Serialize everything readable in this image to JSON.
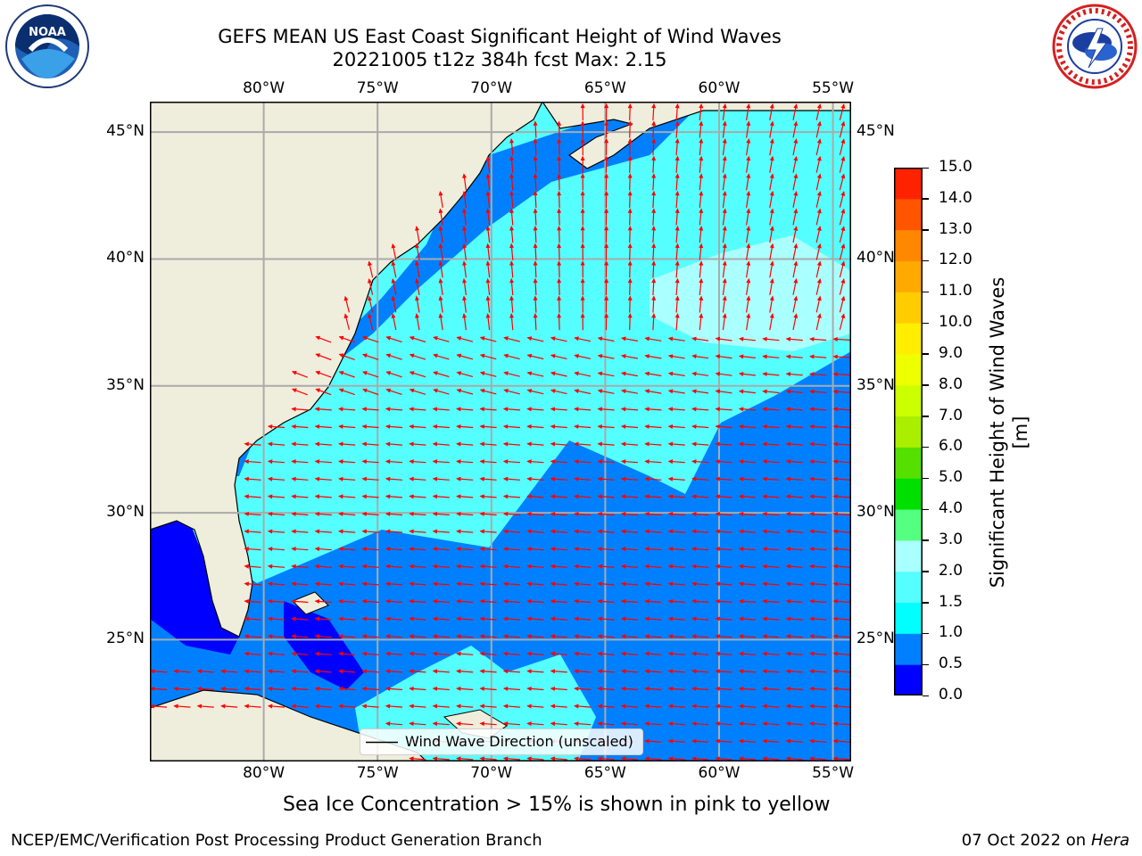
{
  "title": {
    "line1": "GEFS MEAN US East Coast Significant Height of Wind Waves",
    "line2": "20221005 t12z 384h fcst   Max: 2.15"
  },
  "logos": {
    "left": "noara-seal-logo",
    "right": "national-weather-service-logo"
  },
  "map": {
    "lon_ticks_top": [
      "80°W",
      "75°W",
      "70°W",
      "65°W",
      "60°W",
      "55°W"
    ],
    "lon_ticks_bottom": [
      "80°W",
      "75°W",
      "70°W",
      "65°W",
      "60°W",
      "55°W"
    ],
    "lat_ticks_left": [
      "45°N",
      "40°N",
      "35°N",
      "30°N",
      "25°N"
    ],
    "lat_ticks_right": [
      "45°N",
      "40°N",
      "35°N",
      "30°N",
      "25°N"
    ],
    "legend_label": "Wind Wave Direction (unscaled)",
    "extent": {
      "lon_min": -85,
      "lon_max": -54.2,
      "lat_min": 20.2,
      "lat_max": 46.2
    },
    "arrow_color": "#ff0000",
    "land_color": "#efeddc",
    "grid": true
  },
  "colorbar": {
    "label": "Significant Height of Wind Waves [m]",
    "ticks": [
      "0.0",
      "0.5",
      "1.0",
      "1.5",
      "2.0",
      "3.0",
      "4.0",
      "5.0",
      "6.0",
      "7.0",
      "8.0",
      "9.0",
      "10.0",
      "11.0",
      "12.0",
      "13.0",
      "14.0",
      "15.0"
    ],
    "colors": [
      "#0000ff",
      "#0080ff",
      "#00ffff",
      "#55ffff",
      "#aaffff",
      "#55ff80",
      "#00e000",
      "#55e000",
      "#aaee00",
      "#ccff00",
      "#eeff00",
      "#ffee00",
      "#ffcc00",
      "#ffaa00",
      "#ff8800",
      "#ff5500",
      "#ff2200"
    ]
  },
  "note": "Sea Ice Concentration > 15% is shown in pink to yellow",
  "footer": {
    "left": "NCEP/EMC/Verification Post Processing Product Generation Branch",
    "right_date": "07 Oct 2022 on",
    "right_machine": "Hera"
  }
}
